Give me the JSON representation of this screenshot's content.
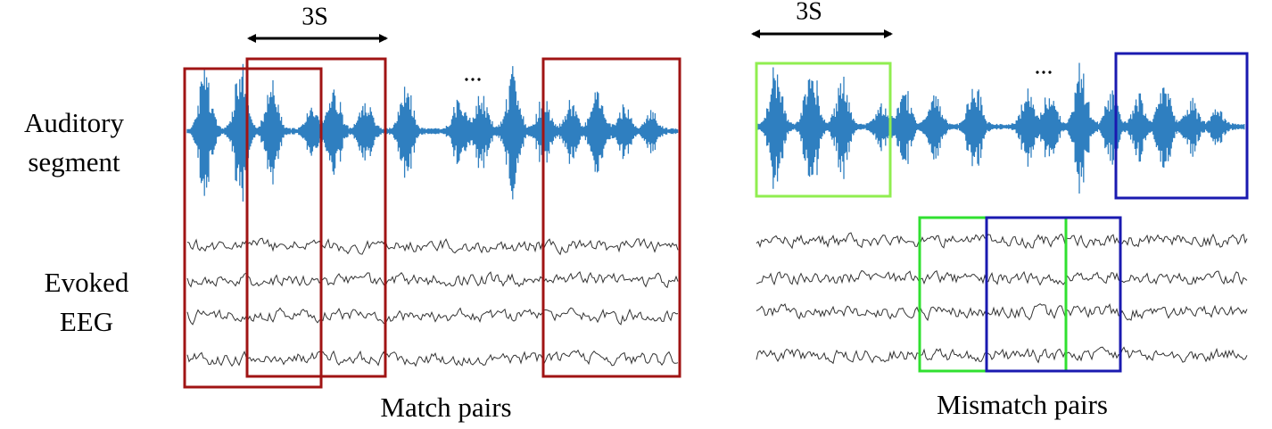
{
  "left_labels": {
    "audio": [
      "Auditory",
      "segment"
    ],
    "eeg": [
      "Evoked",
      "EEG"
    ]
  },
  "panels": [
    {
      "duration": "3S",
      "ellipsis": "...",
      "caption": "Match pairs"
    },
    {
      "duration": "3S",
      "ellipsis": "...",
      "caption": "Mismatch pairs"
    }
  ]
}
